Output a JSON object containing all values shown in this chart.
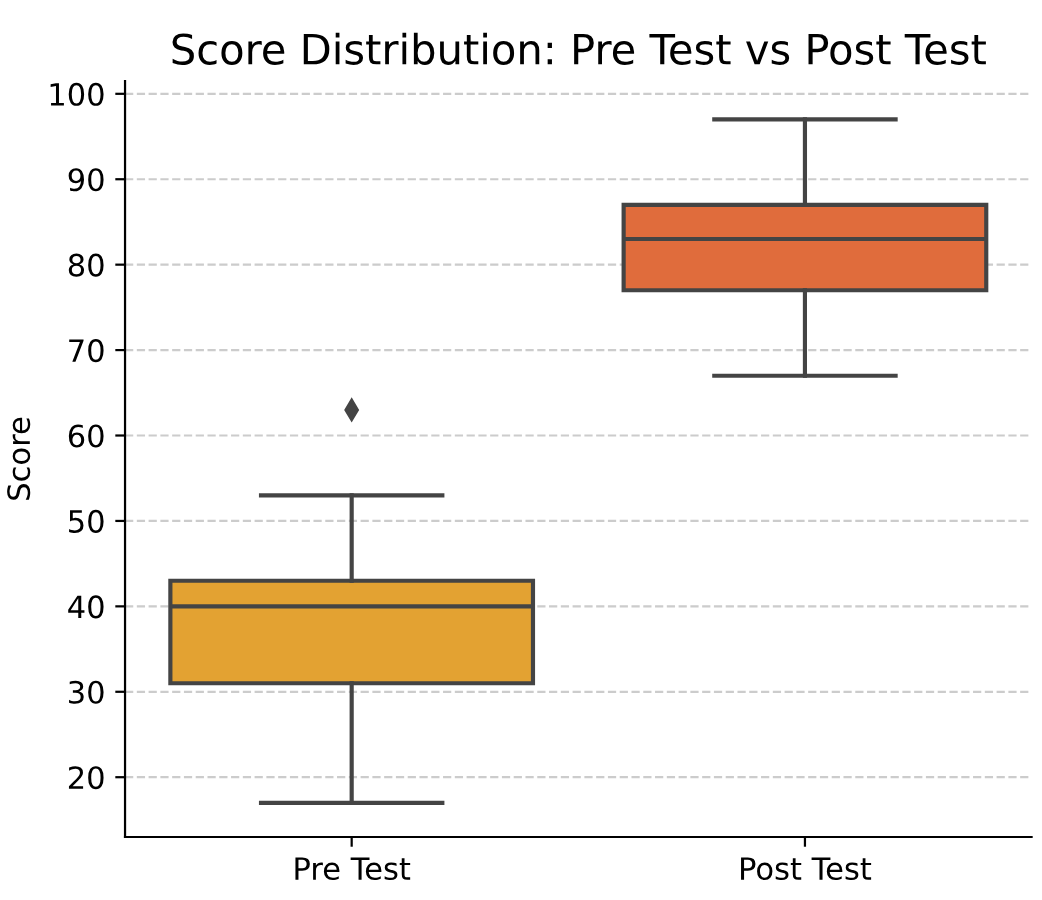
{
  "chart_data": {
    "type": "box",
    "title": "Score Distribution: Pre Test vs Post Test",
    "ylabel": "Score",
    "categories": [
      "Pre Test",
      "Post Test"
    ],
    "boxes": [
      {
        "low": 17,
        "q1": 31,
        "median": 40,
        "q3": 43,
        "high": 53,
        "outliers": [
          63
        ]
      },
      {
        "low": 67,
        "q1": 77,
        "median": 83,
        "q3": 87,
        "high": 97
      }
    ],
    "colors": [
      "#e3a232",
      "#e06c3c"
    ],
    "ylim": [
      13,
      101.5
    ],
    "yticks": [
      20,
      30,
      40,
      50,
      60,
      70,
      80,
      90,
      100
    ],
    "grid": "y",
    "marker": "diamond"
  }
}
